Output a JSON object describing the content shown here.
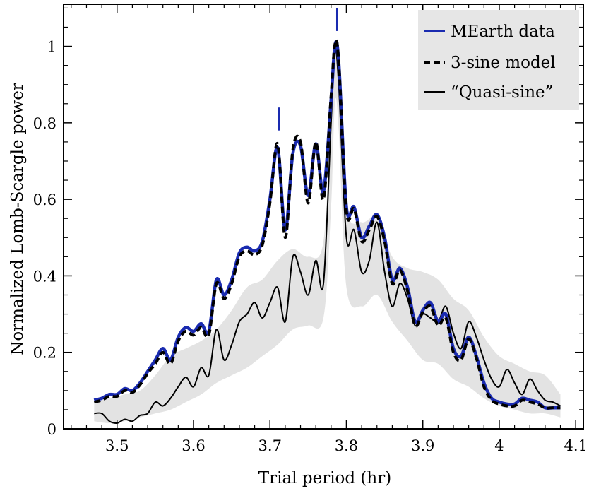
{
  "chart_data": {
    "type": "line",
    "title": "",
    "xlabel": "Trial period (hr)",
    "ylabel": "Normalized Lomb-Scargle power",
    "xlim": [
      3.43,
      4.11
    ],
    "ylim": [
      0,
      1.11
    ],
    "xticks": [
      3.5,
      3.6,
      3.7,
      3.8,
      3.9,
      4.0,
      4.1
    ],
    "xtick_labels": [
      "3.5",
      "3.6",
      "3.7",
      "3.8",
      "3.9",
      "4",
      "4.1"
    ],
    "yticks": [
      0,
      0.2,
      0.4,
      0.6,
      0.8,
      1.0
    ],
    "ytick_labels": [
      "0",
      "0.2",
      "0.4",
      "0.6",
      "0.8",
      "1"
    ],
    "legend_position": "top-right",
    "colors": {
      "mearth": "#1a2bb0",
      "model": "#000000",
      "quasi": "#000000",
      "band": "#e3e3e3",
      "legend_bg": "#e6e6e6"
    },
    "markers": [
      {
        "x": 3.712,
        "y_low": 0.78,
        "y_high": 0.84
      },
      {
        "x": 3.788,
        "y_low": 1.04,
        "y_high": 1.1
      }
    ],
    "series": [
      {
        "name": "MEarth data",
        "style": "solid-blue",
        "points": [
          [
            3.47,
            0.075
          ],
          [
            3.48,
            0.08
          ],
          [
            3.49,
            0.09
          ],
          [
            3.5,
            0.09
          ],
          [
            3.51,
            0.105
          ],
          [
            3.52,
            0.1
          ],
          [
            3.53,
            0.12
          ],
          [
            3.54,
            0.15
          ],
          [
            3.55,
            0.18
          ],
          [
            3.56,
            0.21
          ],
          [
            3.57,
            0.18
          ],
          [
            3.58,
            0.24
          ],
          [
            3.59,
            0.265
          ],
          [
            3.6,
            0.255
          ],
          [
            3.61,
            0.275
          ],
          [
            3.62,
            0.255
          ],
          [
            3.63,
            0.39
          ],
          [
            3.64,
            0.35
          ],
          [
            3.65,
            0.39
          ],
          [
            3.66,
            0.46
          ],
          [
            3.67,
            0.475
          ],
          [
            3.68,
            0.465
          ],
          [
            3.69,
            0.49
          ],
          [
            3.7,
            0.6
          ],
          [
            3.71,
            0.735
          ],
          [
            3.72,
            0.52
          ],
          [
            3.73,
            0.72
          ],
          [
            3.74,
            0.74
          ],
          [
            3.75,
            0.61
          ],
          [
            3.76,
            0.745
          ],
          [
            3.77,
            0.62
          ],
          [
            3.78,
            0.86
          ],
          [
            3.785,
            1.0
          ],
          [
            3.79,
            0.96
          ],
          [
            3.8,
            0.58
          ],
          [
            3.81,
            0.58
          ],
          [
            3.82,
            0.5
          ],
          [
            3.83,
            0.53
          ],
          [
            3.84,
            0.56
          ],
          [
            3.85,
            0.5
          ],
          [
            3.86,
            0.39
          ],
          [
            3.87,
            0.42
          ],
          [
            3.88,
            0.37
          ],
          [
            3.89,
            0.28
          ],
          [
            3.9,
            0.31
          ],
          [
            3.91,
            0.33
          ],
          [
            3.92,
            0.28
          ],
          [
            3.93,
            0.3
          ],
          [
            3.94,
            0.21
          ],
          [
            3.95,
            0.19
          ],
          [
            3.96,
            0.24
          ],
          [
            3.97,
            0.19
          ],
          [
            3.98,
            0.12
          ],
          [
            3.99,
            0.08
          ],
          [
            4.0,
            0.07
          ],
          [
            4.01,
            0.065
          ],
          [
            4.02,
            0.065
          ],
          [
            4.03,
            0.08
          ],
          [
            4.04,
            0.075
          ],
          [
            4.05,
            0.07
          ],
          [
            4.06,
            0.055
          ],
          [
            4.07,
            0.055
          ],
          [
            4.08,
            0.055
          ]
        ]
      },
      {
        "name": "3-sine model",
        "style": "dashed-black",
        "points": [
          [
            3.47,
            0.07
          ],
          [
            3.48,
            0.075
          ],
          [
            3.49,
            0.085
          ],
          [
            3.5,
            0.085
          ],
          [
            3.51,
            0.1
          ],
          [
            3.52,
            0.095
          ],
          [
            3.53,
            0.115
          ],
          [
            3.54,
            0.145
          ],
          [
            3.55,
            0.17
          ],
          [
            3.56,
            0.2
          ],
          [
            3.57,
            0.17
          ],
          [
            3.58,
            0.23
          ],
          [
            3.59,
            0.255
          ],
          [
            3.6,
            0.245
          ],
          [
            3.61,
            0.265
          ],
          [
            3.62,
            0.245
          ],
          [
            3.63,
            0.38
          ],
          [
            3.64,
            0.34
          ],
          [
            3.65,
            0.38
          ],
          [
            3.66,
            0.45
          ],
          [
            3.67,
            0.465
          ],
          [
            3.68,
            0.455
          ],
          [
            3.69,
            0.48
          ],
          [
            3.7,
            0.59
          ],
          [
            3.71,
            0.745
          ],
          [
            3.72,
            0.5
          ],
          [
            3.73,
            0.73
          ],
          [
            3.74,
            0.75
          ],
          [
            3.75,
            0.59
          ],
          [
            3.76,
            0.75
          ],
          [
            3.77,
            0.6
          ],
          [
            3.78,
            0.87
          ],
          [
            3.785,
            1.005
          ],
          [
            3.79,
            0.96
          ],
          [
            3.8,
            0.57
          ],
          [
            3.81,
            0.575
          ],
          [
            3.82,
            0.49
          ],
          [
            3.83,
            0.52
          ],
          [
            3.84,
            0.555
          ],
          [
            3.85,
            0.49
          ],
          [
            3.86,
            0.38
          ],
          [
            3.87,
            0.415
          ],
          [
            3.88,
            0.36
          ],
          [
            3.89,
            0.27
          ],
          [
            3.9,
            0.305
          ],
          [
            3.91,
            0.32
          ],
          [
            3.92,
            0.27
          ],
          [
            3.93,
            0.29
          ],
          [
            3.94,
            0.2
          ],
          [
            3.95,
            0.18
          ],
          [
            3.96,
            0.235
          ],
          [
            3.97,
            0.185
          ],
          [
            3.98,
            0.11
          ],
          [
            3.99,
            0.075
          ],
          [
            4.0,
            0.065
          ],
          [
            4.01,
            0.06
          ],
          [
            4.02,
            0.06
          ],
          [
            4.03,
            0.075
          ],
          [
            4.04,
            0.07
          ],
          [
            4.05,
            0.065
          ],
          [
            4.06,
            0.055
          ],
          [
            4.07,
            0.055
          ],
          [
            4.08,
            0.055
          ]
        ]
      },
      {
        "name": "“Quasi-sine”",
        "style": "thin-black",
        "points": [
          [
            3.47,
            0.04
          ],
          [
            3.48,
            0.04
          ],
          [
            3.49,
            0.02
          ],
          [
            3.5,
            0.015
          ],
          [
            3.51,
            0.025
          ],
          [
            3.52,
            0.02
          ],
          [
            3.53,
            0.035
          ],
          [
            3.54,
            0.04
          ],
          [
            3.55,
            0.07
          ],
          [
            3.56,
            0.06
          ],
          [
            3.57,
            0.08
          ],
          [
            3.58,
            0.11
          ],
          [
            3.59,
            0.135
          ],
          [
            3.6,
            0.11
          ],
          [
            3.61,
            0.16
          ],
          [
            3.62,
            0.14
          ],
          [
            3.63,
            0.26
          ],
          [
            3.64,
            0.18
          ],
          [
            3.65,
            0.22
          ],
          [
            3.66,
            0.28
          ],
          [
            3.67,
            0.3
          ],
          [
            3.68,
            0.33
          ],
          [
            3.69,
            0.29
          ],
          [
            3.7,
            0.33
          ],
          [
            3.71,
            0.37
          ],
          [
            3.72,
            0.28
          ],
          [
            3.73,
            0.45
          ],
          [
            3.74,
            0.41
          ],
          [
            3.75,
            0.35
          ],
          [
            3.76,
            0.44
          ],
          [
            3.77,
            0.38
          ],
          [
            3.78,
            0.8
          ],
          [
            3.785,
            0.99
          ],
          [
            3.79,
            0.9
          ],
          [
            3.8,
            0.5
          ],
          [
            3.81,
            0.52
          ],
          [
            3.82,
            0.41
          ],
          [
            3.83,
            0.44
          ],
          [
            3.84,
            0.54
          ],
          [
            3.85,
            0.41
          ],
          [
            3.86,
            0.32
          ],
          [
            3.87,
            0.38
          ],
          [
            3.88,
            0.34
          ],
          [
            3.89,
            0.27
          ],
          [
            3.9,
            0.3
          ],
          [
            3.91,
            0.29
          ],
          [
            3.92,
            0.28
          ],
          [
            3.93,
            0.32
          ],
          [
            3.94,
            0.25
          ],
          [
            3.95,
            0.21
          ],
          [
            3.96,
            0.28
          ],
          [
            3.97,
            0.24
          ],
          [
            3.98,
            0.18
          ],
          [
            3.99,
            0.13
          ],
          [
            4.0,
            0.11
          ],
          [
            4.01,
            0.155
          ],
          [
            4.02,
            0.12
          ],
          [
            4.03,
            0.09
          ],
          [
            4.04,
            0.13
          ],
          [
            4.05,
            0.1
          ],
          [
            4.06,
            0.075
          ],
          [
            4.07,
            0.07
          ],
          [
            4.08,
            0.06
          ]
        ]
      }
    ],
    "band": {
      "name": "Quasi-sine spread",
      "points": [
        [
          3.47,
          0.02,
          0.07
        ],
        [
          3.49,
          0.015,
          0.08
        ],
        [
          3.51,
          0.02,
          0.09
        ],
        [
          3.53,
          0.03,
          0.1
        ],
        [
          3.55,
          0.04,
          0.14
        ],
        [
          3.57,
          0.05,
          0.19
        ],
        [
          3.59,
          0.07,
          0.21
        ],
        [
          3.61,
          0.09,
          0.23
        ],
        [
          3.63,
          0.12,
          0.26
        ],
        [
          3.65,
          0.14,
          0.31
        ],
        [
          3.67,
          0.16,
          0.37
        ],
        [
          3.69,
          0.19,
          0.39
        ],
        [
          3.71,
          0.22,
          0.44
        ],
        [
          3.73,
          0.26,
          0.47
        ],
        [
          3.75,
          0.27,
          0.45
        ],
        [
          3.77,
          0.29,
          0.49
        ],
        [
          3.78,
          0.58,
          0.85
        ],
        [
          3.785,
          0.85,
          1.0
        ],
        [
          3.79,
          0.78,
          0.95
        ],
        [
          3.8,
          0.37,
          0.58
        ],
        [
          3.82,
          0.32,
          0.54
        ],
        [
          3.84,
          0.35,
          0.55
        ],
        [
          3.86,
          0.28,
          0.45
        ],
        [
          3.88,
          0.23,
          0.42
        ],
        [
          3.9,
          0.18,
          0.41
        ],
        [
          3.92,
          0.17,
          0.39
        ],
        [
          3.94,
          0.13,
          0.34
        ],
        [
          3.96,
          0.11,
          0.31
        ],
        [
          3.98,
          0.08,
          0.24
        ],
        [
          4.0,
          0.06,
          0.19
        ],
        [
          4.02,
          0.05,
          0.17
        ],
        [
          4.04,
          0.04,
          0.15
        ],
        [
          4.06,
          0.04,
          0.14
        ],
        [
          4.08,
          0.03,
          0.09
        ]
      ]
    }
  }
}
